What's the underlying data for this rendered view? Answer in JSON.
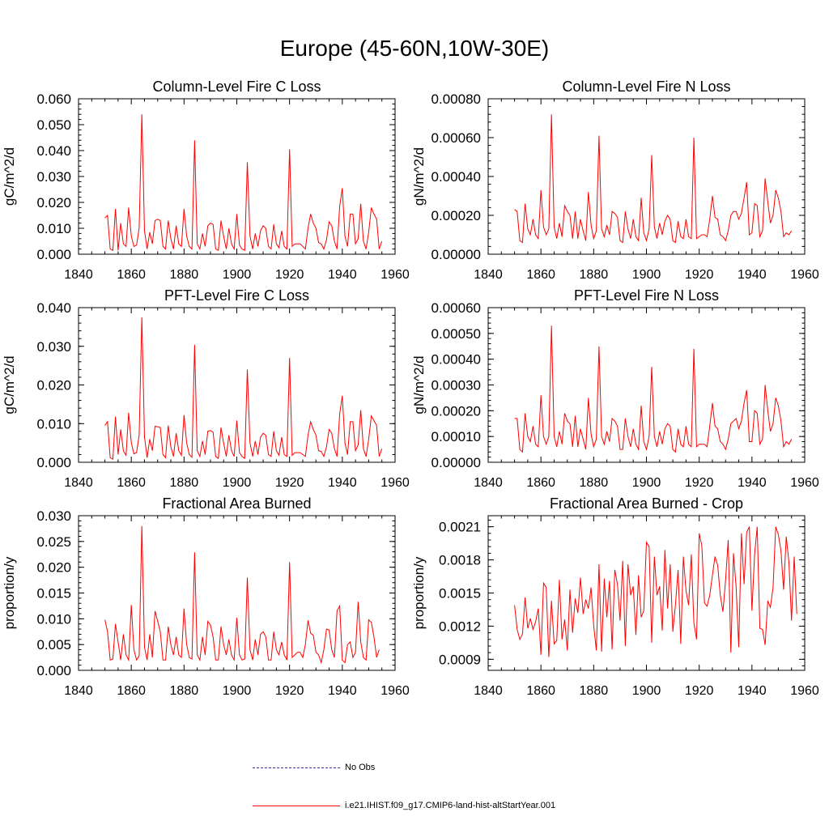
{
  "page": {
    "title": "Europe (45-60N,10W-30E)"
  },
  "legend": {
    "items": [
      {
        "label": "No Obs",
        "color": "#3333aa",
        "style": "dashed"
      },
      {
        "label": "i.e21.IHIST.f09_g17.CMIP6-land-hist-altStartYear.001",
        "color": "#ff0000",
        "style": "solid"
      }
    ]
  },
  "colors": {
    "series": "#ff0000",
    "axis": "#000000"
  },
  "chart_data": [
    {
      "type": "line",
      "title": "Column-Level Fire C Loss",
      "ylabel": "gC/m^2/d",
      "xlim": [
        1840,
        1960
      ],
      "ylim": [
        0,
        0.06
      ],
      "xticks": [
        "1840",
        "1860",
        "1880",
        "1900",
        "1920",
        "1940",
        "1960"
      ],
      "yticks": [
        "0.000",
        "0.010",
        "0.020",
        "0.030",
        "0.040",
        "0.050",
        "0.060"
      ],
      "x_start": 1850,
      "series": [
        {
          "values": [
            0.014,
            0.015,
            0.002,
            0.0015,
            0.0175,
            0.0015,
            0.012,
            0.004,
            0.003,
            0.018,
            0.007,
            0.003,
            0.0035,
            0.01,
            0.054,
            0.009,
            0.002,
            0.0085,
            0.004,
            0.013,
            0.0135,
            0.013,
            0.003,
            0.002,
            0.013,
            0.006,
            0.002,
            0.011,
            0.004,
            0.003,
            0.0175,
            0.007,
            0.003,
            0.002,
            0.044,
            0.004,
            0.002,
            0.008,
            0.003,
            0.011,
            0.012,
            0.0115,
            0.002,
            0.0015,
            0.013,
            0.007,
            0.002,
            0.01,
            0.004,
            0.002,
            0.0155,
            0.0035,
            0.002,
            0.0015,
            0.0355,
            0.007,
            0.002,
            0.008,
            0.003,
            0.009,
            0.011,
            0.01,
            0.003,
            0.002,
            0.0115,
            0.004,
            0.0025,
            0.009,
            0.003,
            0.002,
            0.0405,
            0.003,
            0.004,
            0.004,
            0.004,
            0.003,
            0.002,
            0.01,
            0.0155,
            0.012,
            0.01,
            0.0045,
            0.004,
            0.002,
            0.0055,
            0.0125,
            0.011,
            0.005,
            0.002,
            0.0185,
            0.0255,
            0.007,
            0.003,
            0.0155,
            0.0155,
            0.004,
            0.006,
            0.0195,
            0.005,
            0.002,
            0.0085,
            0.018,
            0.0155,
            0.0135,
            0.002,
            0.005
          ]
        }
      ]
    },
    {
      "type": "line",
      "title": "Column-Level Fire N Loss",
      "ylabel": "gN/m^2/d",
      "xlim": [
        1840,
        1960
      ],
      "ylim": [
        0,
        0.0008
      ],
      "xticks": [
        "1840",
        "1860",
        "1880",
        "1900",
        "1920",
        "1940",
        "1960"
      ],
      "yticks": [
        "0.00000",
        "0.00020",
        "0.00040",
        "0.00060",
        "0.00080"
      ],
      "x_start": 1850,
      "series": [
        {
          "values": [
            0.00023,
            0.00022,
            7e-05,
            6e-05,
            0.00026,
            0.00013,
            0.0001,
            0.00018,
            0.0001,
            8e-05,
            0.00033,
            0.00014,
            0.0001,
            0.00013,
            0.00072,
            0.00014,
            8e-05,
            0.00016,
            9e-05,
            0.00025,
            0.00022,
            0.0002,
            8e-05,
            0.00022,
            8e-05,
            0.00018,
            0.00012,
            7e-05,
            0.00032,
            0.00015,
            8e-05,
            0.00012,
            0.00061,
            0.00013,
            9e-05,
            0.00015,
            0.0001,
            0.00022,
            0.00021,
            0.00019,
            7e-05,
            6e-05,
            0.00022,
            0.00013,
            8e-05,
            0.00018,
            9e-05,
            7e-05,
            0.00029,
            0.00011,
            7e-05,
            0.00013,
            0.00051,
            0.00014,
            8e-05,
            0.00016,
            0.0001,
            0.00017,
            0.0002,
            0.00018,
            7e-05,
            6e-05,
            0.00017,
            9e-05,
            8e-05,
            0.00018,
            9e-05,
            8e-05,
            0.0006,
            8e-05,
            9e-05,
            0.0001,
            0.0001,
            9e-05,
            0.00018,
            0.0003,
            0.00019,
            0.00018,
            0.0001,
            9e-05,
            7e-05,
            0.00012,
            0.0002,
            0.00022,
            0.00022,
            0.00018,
            0.00021,
            0.00029,
            0.00037,
            0.0001,
            0.00011,
            0.00026,
            0.00025,
            9e-05,
            0.00012,
            0.00039,
            0.00027,
            0.00016,
            0.0002,
            0.00033,
            0.00029,
            0.00022,
            9e-05,
            0.00011,
            0.0001,
            0.00012
          ]
        }
      ]
    },
    {
      "type": "line",
      "title": "PFT-Level Fire C Loss",
      "ylabel": "gC/m^2/d",
      "xlim": [
        1840,
        1960
      ],
      "ylim": [
        0,
        0.04
      ],
      "xticks": [
        "1840",
        "1860",
        "1880",
        "1900",
        "1920",
        "1940",
        "1960"
      ],
      "yticks": [
        "0.000",
        "0.010",
        "0.020",
        "0.030",
        "0.040"
      ],
      "x_start": 1850,
      "series": [
        {
          "values": [
            0.0095,
            0.0105,
            0.0012,
            0.0008,
            0.0118,
            0.002,
            0.0085,
            0.003,
            0.0018,
            0.0128,
            0.005,
            0.0022,
            0.0025,
            0.007,
            0.0375,
            0.0065,
            0.0012,
            0.006,
            0.003,
            0.0093,
            0.0092,
            0.009,
            0.002,
            0.0012,
            0.0095,
            0.004,
            0.0015,
            0.0075,
            0.003,
            0.0018,
            0.0122,
            0.005,
            0.002,
            0.0013,
            0.0304,
            0.003,
            0.0015,
            0.0055,
            0.002,
            0.008,
            0.0082,
            0.0078,
            0.0015,
            0.001,
            0.009,
            0.005,
            0.0015,
            0.007,
            0.003,
            0.0015,
            0.0108,
            0.0025,
            0.0015,
            0.001,
            0.024,
            0.005,
            0.0015,
            0.0055,
            0.002,
            0.0065,
            0.0075,
            0.007,
            0.002,
            0.0015,
            0.008,
            0.003,
            0.0018,
            0.0065,
            0.002,
            0.0015,
            0.027,
            0.0018,
            0.0025,
            0.0025,
            0.0025,
            0.002,
            0.0015,
            0.007,
            0.0105,
            0.0085,
            0.007,
            0.003,
            0.0028,
            0.0015,
            0.004,
            0.0085,
            0.0075,
            0.0035,
            0.0015,
            0.0125,
            0.0172,
            0.005,
            0.002,
            0.0105,
            0.0105,
            0.003,
            0.0045,
            0.0135,
            0.0035,
            0.0015,
            0.006,
            0.012,
            0.0108,
            0.0095,
            0.0015,
            0.0035
          ]
        }
      ]
    },
    {
      "type": "line",
      "title": "PFT-Level Fire N Loss",
      "ylabel": "gN/m^2/d",
      "xlim": [
        1840,
        1960
      ],
      "ylim": [
        0,
        0.0006
      ],
      "xticks": [
        "1840",
        "1860",
        "1880",
        "1900",
        "1920",
        "1940",
        "1960"
      ],
      "yticks": [
        "0.00000",
        "0.00010",
        "0.00020",
        "0.00030",
        "0.00040",
        "0.00050",
        "0.00060"
      ],
      "x_start": 1850,
      "series": [
        {
          "values": [
            0.00017,
            0.00017,
            5e-05,
            4e-05,
            0.00019,
            0.0001,
            8e-05,
            0.00014,
            7e-05,
            6e-05,
            0.00026,
            0.0001,
            7e-05,
            0.0001,
            0.00053,
            0.0001,
            6e-05,
            0.00012,
            7e-05,
            0.00019,
            0.00016,
            0.00015,
            6e-05,
            0.00018,
            6e-05,
            0.00013,
            9e-05,
            5e-05,
            0.00025,
            0.00011,
            6e-05,
            9e-05,
            0.00045,
            0.0001,
            7e-05,
            0.00012,
            8e-05,
            0.00017,
            0.00016,
            0.00014,
            5e-05,
            5e-05,
            0.00017,
            0.0001,
            6e-05,
            0.00013,
            7e-05,
            5e-05,
            0.00022,
            8e-05,
            5e-05,
            0.0001,
            0.00037,
            0.0001,
            6e-05,
            0.00012,
            7e-05,
            0.00013,
            0.00015,
            0.00014,
            5e-05,
            4e-05,
            0.00013,
            7e-05,
            6e-05,
            0.00014,
            7e-05,
            6e-05,
            0.00044,
            6e-05,
            7e-05,
            7e-05,
            7e-05,
            6e-05,
            0.00014,
            0.00023,
            0.00014,
            0.00013,
            8e-05,
            7e-05,
            5e-05,
            9e-05,
            0.00015,
            0.00016,
            0.00017,
            0.00013,
            0.00016,
            0.00023,
            0.00028,
            8e-05,
            8e-05,
            0.0002,
            0.00019,
            7e-05,
            9e-05,
            0.0003,
            0.0002,
            0.00012,
            0.00015,
            0.00025,
            0.00022,
            0.00016,
            6e-05,
            8e-05,
            7e-05,
            9e-05
          ]
        }
      ]
    },
    {
      "type": "line",
      "title": "Fractional Area Burned",
      "ylabel": "proportion/y",
      "xlim": [
        1840,
        1960
      ],
      "ylim": [
        0,
        0.03
      ],
      "xticks": [
        "1840",
        "1860",
        "1880",
        "1900",
        "1920",
        "1940",
        "1960"
      ],
      "yticks": [
        "0.000",
        "0.005",
        "0.010",
        "0.015",
        "0.020",
        "0.025",
        "0.030"
      ],
      "x_start": 1850,
      "series": [
        {
          "values": [
            0.0098,
            0.0075,
            0.002,
            0.0022,
            0.009,
            0.0055,
            0.002,
            0.007,
            0.003,
            0.002,
            0.0127,
            0.004,
            0.002,
            0.0028,
            0.028,
            0.0045,
            0.002,
            0.007,
            0.0025,
            0.0115,
            0.0095,
            0.0075,
            0.002,
            0.002,
            0.0085,
            0.005,
            0.003,
            0.0065,
            0.003,
            0.0025,
            0.012,
            0.005,
            0.0025,
            0.0022,
            0.0229,
            0.003,
            0.002,
            0.0065,
            0.003,
            0.0095,
            0.0088,
            0.0065,
            0.002,
            0.002,
            0.0085,
            0.005,
            0.003,
            0.006,
            0.003,
            0.002,
            0.0102,
            0.003,
            0.002,
            0.0022,
            0.018,
            0.004,
            0.002,
            0.006,
            0.003,
            0.007,
            0.0075,
            0.0065,
            0.002,
            0.002,
            0.0075,
            0.004,
            0.003,
            0.0055,
            0.003,
            0.002,
            0.021,
            0.0025,
            0.003,
            0.0035,
            0.0035,
            0.0025,
            0.005,
            0.0097,
            0.0072,
            0.0068,
            0.0035,
            0.003,
            0.0015,
            0.004,
            0.008,
            0.0078,
            0.004,
            0.0025,
            0.0115,
            0.0125,
            0.002,
            0.0015,
            0.005,
            0.0055,
            0.0025,
            0.0035,
            0.0133,
            0.0055,
            0.0025,
            0.002,
            0.0098,
            0.0093,
            0.0065,
            0.0025,
            0.004
          ]
        }
      ]
    },
    {
      "type": "line",
      "title": "Fractional Area Burned - Crop",
      "ylabel": "proportion/y",
      "xlim": [
        1840,
        1960
      ],
      "ylim": [
        0.0008,
        0.0022
      ],
      "xticks": [
        "1840",
        "1860",
        "1880",
        "1900",
        "1920",
        "1940",
        "1960"
      ],
      "yticks": [
        "0.0009",
        "0.0012",
        "0.0015",
        "0.0018",
        "0.0021"
      ],
      "ytick_values": [
        0.0009,
        0.0012,
        0.0015,
        0.0018,
        0.0021
      ],
      "x_start": 1850,
      "series": [
        {
          "values": [
            0.00139,
            0.00117,
            0.00108,
            0.00113,
            0.00146,
            0.00118,
            0.00127,
            0.00117,
            0.00124,
            0.00136,
            0.00094,
            0.00159,
            0.00155,
            0.00092,
            0.00143,
            0.00104,
            0.00107,
            0.00162,
            0.00108,
            0.00126,
            0.00098,
            0.00153,
            0.00114,
            0.00145,
            0.00132,
            0.00164,
            0.00131,
            0.00144,
            0.00136,
            0.00155,
            0.00121,
            0.00098,
            0.00176,
            0.00097,
            0.00163,
            0.00128,
            0.00161,
            0.00099,
            0.00171,
            0.00158,
            0.00125,
            0.00179,
            0.00102,
            0.00176,
            0.00148,
            0.00156,
            0.00112,
            0.00166,
            0.00128,
            0.00134,
            0.00196,
            0.00192,
            0.00105,
            0.00183,
            0.00148,
            0.00156,
            0.00116,
            0.00189,
            0.00136,
            0.00176,
            0.00115,
            0.00139,
            0.00171,
            0.00104,
            0.00183,
            0.00152,
            0.00139,
            0.00185,
            0.00123,
            0.00108,
            0.00204,
            0.00193,
            0.00141,
            0.00138,
            0.00148,
            0.00166,
            0.00183,
            0.00175,
            0.00148,
            0.00133,
            0.00162,
            0.00198,
            0.00096,
            0.00186,
            0.00155,
            0.00101,
            0.00204,
            0.00158,
            0.00205,
            0.0021,
            0.00134,
            0.00185,
            0.0021,
            0.00118,
            0.00117,
            0.00103,
            0.00143,
            0.00137,
            0.00155,
            0.0021,
            0.00203,
            0.00188,
            0.00153,
            0.00201,
            0.00178,
            0.00125,
            0.00183,
            0.00131
          ]
        }
      ]
    }
  ]
}
